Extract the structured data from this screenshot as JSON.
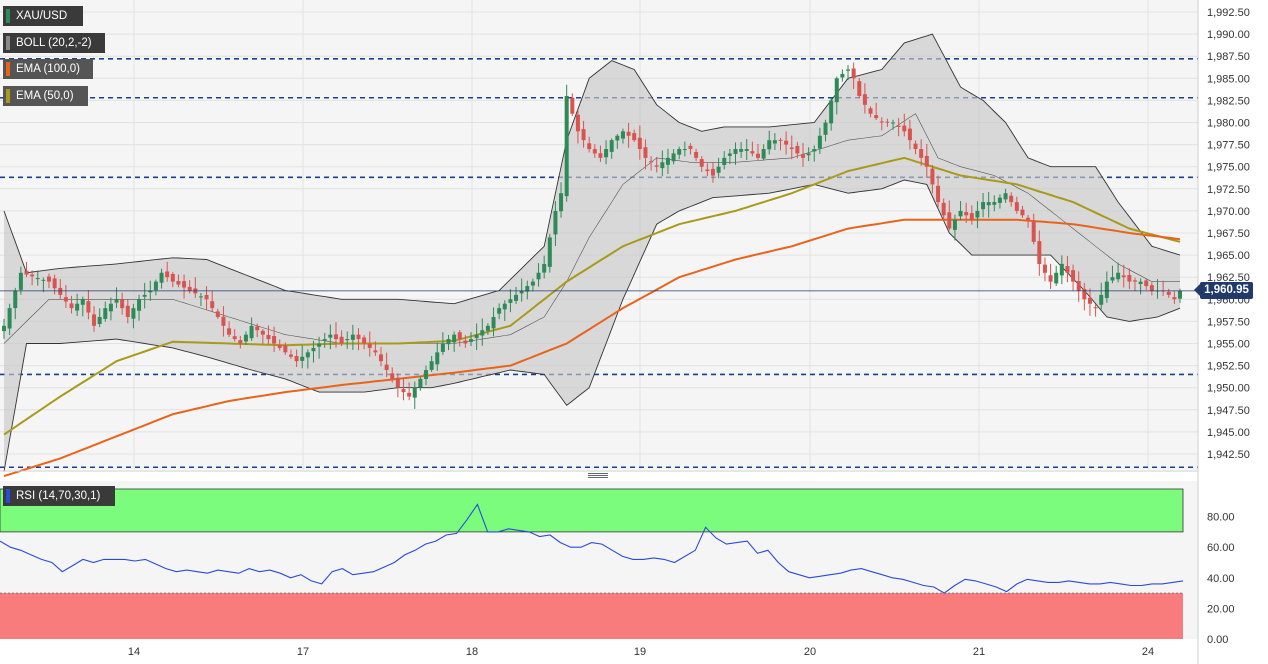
{
  "chart_data": [
    {
      "type": "candlestick",
      "symbol": "XAU/USD",
      "indicators": [
        {
          "label": "BOLL (20,2,-2)",
          "color": "#555555"
        },
        {
          "label": "EMA (100,0)",
          "color": "#e8641b"
        },
        {
          "label": "EMA (50,0)",
          "color": "#a89a1a"
        }
      ],
      "last_price": "1,960.95",
      "last_price_value": 1960.95,
      "x_tick_labels": [
        "14",
        "17",
        "18",
        "19",
        "20",
        "21",
        "24"
      ],
      "y_tick_labels": [
        "1,942.50",
        "1,945.00",
        "1,947.50",
        "1,950.00",
        "1,952.50",
        "1,955.00",
        "1,957.50",
        "1,960.00",
        "1,962.50",
        "1,965.00",
        "1,967.50",
        "1,970.00",
        "1,972.50",
        "1,975.00",
        "1,977.50",
        "1,980.00",
        "1,982.50",
        "1,985.00",
        "1,987.50",
        "1,990.00",
        "1,992.50"
      ],
      "ylim": [
        1941.0,
        1993.5
      ],
      "horizontal_levels": [
        1941.0,
        1951.5,
        1973.8,
        1982.8,
        1987.2
      ],
      "close_path": [
        [
          0,
          1957
        ],
        [
          3,
          1963
        ],
        [
          8,
          1962
        ],
        [
          12,
          1959
        ],
        [
          14,
          1960
        ],
        [
          16,
          1957
        ],
        [
          18,
          1959
        ],
        [
          20,
          1960
        ],
        [
          22,
          1958
        ],
        [
          24,
          1960
        ],
        [
          26,
          1961
        ],
        [
          28,
          1963
        ],
        [
          30,
          1962
        ],
        [
          33,
          1961
        ],
        [
          36,
          1960
        ],
        [
          38,
          1958
        ],
        [
          40,
          1956
        ],
        [
          42,
          1955
        ],
        [
          44,
          1957
        ],
        [
          46,
          1956
        ],
        [
          48,
          1955
        ],
        [
          50,
          1954
        ],
        [
          52,
          1953
        ],
        [
          54,
          1954
        ],
        [
          56,
          1955
        ],
        [
          58,
          1956
        ],
        [
          60,
          1955
        ],
        [
          62,
          1956
        ],
        [
          64,
          1955
        ],
        [
          66,
          1954
        ],
        [
          68,
          1952
        ],
        [
          70,
          1950
        ],
        [
          72,
          1949
        ],
        [
          74,
          1951
        ],
        [
          76,
          1953
        ],
        [
          78,
          1955
        ],
        [
          80,
          1956
        ],
        [
          82,
          1955
        ],
        [
          84,
          1956
        ],
        [
          86,
          1957
        ],
        [
          88,
          1959
        ],
        [
          90,
          1960
        ],
        [
          92,
          1961
        ],
        [
          94,
          1962
        ],
        [
          96,
          1964
        ],
        [
          97,
          1967
        ],
        [
          98,
          1970
        ],
        [
          99,
          1972
        ],
        [
          100,
          1983
        ],
        [
          102,
          1979
        ],
        [
          104,
          1977
        ],
        [
          106,
          1976
        ],
        [
          108,
          1978
        ],
        [
          110,
          1979
        ],
        [
          112,
          1978
        ],
        [
          114,
          1976
        ],
        [
          116,
          1975
        ],
        [
          118,
          1976
        ],
        [
          120,
          1977
        ],
        [
          122,
          1977
        ],
        [
          124,
          1975
        ],
        [
          126,
          1974
        ],
        [
          128,
          1976
        ],
        [
          130,
          1977
        ],
        [
          132,
          1977
        ],
        [
          134,
          1976
        ],
        [
          136,
          1978
        ],
        [
          138,
          1978
        ],
        [
          140,
          1977
        ],
        [
          142,
          1976
        ],
        [
          144,
          1977
        ],
        [
          146,
          1980
        ],
        [
          148,
          1985
        ],
        [
          150,
          1986
        ],
        [
          151,
          1985
        ],
        [
          152,
          1983
        ],
        [
          154,
          1981
        ],
        [
          156,
          1980
        ],
        [
          158,
          1980
        ],
        [
          160,
          1979
        ],
        [
          162,
          1977
        ],
        [
          164,
          1975
        ],
        [
          166,
          1971
        ],
        [
          168,
          1968
        ],
        [
          170,
          1970
        ],
        [
          172,
          1969
        ],
        [
          174,
          1971
        ],
        [
          176,
          1971
        ],
        [
          178,
          1972
        ],
        [
          180,
          1970
        ],
        [
          182,
          1969
        ],
        [
          184,
          1964
        ],
        [
          186,
          1962
        ],
        [
          188,
          1964
        ],
        [
          190,
          1962
        ],
        [
          192,
          1960
        ],
        [
          194,
          1959
        ],
        [
          196,
          1962
        ],
        [
          198,
          1963
        ],
        [
          200,
          1962
        ],
        [
          202,
          1962
        ],
        [
          204,
          1961
        ],
        [
          206,
          1961
        ],
        [
          208,
          1960
        ],
        [
          209,
          1961
        ]
      ],
      "ema50_path": [
        [
          0,
          1944.7
        ],
        [
          10,
          1949
        ],
        [
          20,
          1953
        ],
        [
          30,
          1955.2
        ],
        [
          40,
          1955
        ],
        [
          50,
          1954.8
        ],
        [
          60,
          1955
        ],
        [
          70,
          1955
        ],
        [
          80,
          1955.3
        ],
        [
          90,
          1957
        ],
        [
          100,
          1962
        ],
        [
          110,
          1966
        ],
        [
          120,
          1968.5
        ],
        [
          130,
          1970
        ],
        [
          140,
          1972
        ],
        [
          150,
          1974.5
        ],
        [
          160,
          1976
        ],
        [
          170,
          1974
        ],
        [
          180,
          1973
        ],
        [
          190,
          1971
        ],
        [
          200,
          1968
        ],
        [
          209,
          1966.5
        ]
      ],
      "ema100_path": [
        [
          0,
          1940
        ],
        [
          10,
          1942
        ],
        [
          20,
          1944.5
        ],
        [
          30,
          1947
        ],
        [
          40,
          1948.5
        ],
        [
          50,
          1949.5
        ],
        [
          60,
          1950.3
        ],
        [
          70,
          1951
        ],
        [
          80,
          1951.7
        ],
        [
          90,
          1952.5
        ],
        [
          100,
          1955
        ],
        [
          110,
          1959
        ],
        [
          120,
          1962.5
        ],
        [
          130,
          1964.5
        ],
        [
          140,
          1966
        ],
        [
          150,
          1968
        ],
        [
          160,
          1969
        ],
        [
          170,
          1969
        ],
        [
          180,
          1969
        ],
        [
          190,
          1968.5
        ],
        [
          200,
          1967.5
        ],
        [
          209,
          1966.8
        ]
      ],
      "boll_upper_path": [
        [
          0,
          1970
        ],
        [
          4,
          1963
        ],
        [
          10,
          1963.5
        ],
        [
          20,
          1964
        ],
        [
          30,
          1964.7
        ],
        [
          36,
          1964.5
        ],
        [
          44,
          1962.5
        ],
        [
          50,
          1961
        ],
        [
          60,
          1960
        ],
        [
          70,
          1960
        ],
        [
          80,
          1959.5
        ],
        [
          88,
          1961
        ],
        [
          96,
          1966
        ],
        [
          100,
          1978
        ],
        [
          104,
          1985
        ],
        [
          108,
          1987
        ],
        [
          112,
          1986
        ],
        [
          116,
          1982
        ],
        [
          120,
          1980
        ],
        [
          124,
          1979
        ],
        [
          128,
          1979.5
        ],
        [
          136,
          1979.5
        ],
        [
          144,
          1980
        ],
        [
          150,
          1985
        ],
        [
          156,
          1986
        ],
        [
          160,
          1989
        ],
        [
          165,
          1990
        ],
        [
          170,
          1984
        ],
        [
          174,
          1982.5
        ],
        [
          178,
          1980
        ],
        [
          182,
          1976
        ],
        [
          186,
          1975
        ],
        [
          190,
          1975
        ],
        [
          194,
          1975
        ],
        [
          198,
          1971
        ],
        [
          204,
          1966
        ],
        [
          209,
          1965
        ]
      ],
      "boll_lower_path": [
        [
          0,
          1940.5
        ],
        [
          4,
          1955
        ],
        [
          10,
          1955
        ],
        [
          20,
          1955.5
        ],
        [
          30,
          1954.5
        ],
        [
          36,
          1953.5
        ],
        [
          44,
          1952
        ],
        [
          50,
          1951
        ],
        [
          56,
          1949.5
        ],
        [
          64,
          1949.5
        ],
        [
          70,
          1950
        ],
        [
          76,
          1950
        ],
        [
          80,
          1950.5
        ],
        [
          90,
          1952
        ],
        [
          96,
          1951.5
        ],
        [
          100,
          1948
        ],
        [
          104,
          1950
        ],
        [
          110,
          1960
        ],
        [
          116,
          1968.5
        ],
        [
          120,
          1970
        ],
        [
          126,
          1971.5
        ],
        [
          136,
          1972
        ],
        [
          144,
          1973
        ],
        [
          150,
          1972
        ],
        [
          156,
          1972.5
        ],
        [
          160,
          1973.5
        ],
        [
          164,
          1973
        ],
        [
          168,
          1967.5
        ],
        [
          172,
          1965
        ],
        [
          178,
          1965
        ],
        [
          186,
          1965
        ],
        [
          192,
          1961
        ],
        [
          196,
          1958
        ],
        [
          200,
          1957.5
        ],
        [
          205,
          1958
        ],
        [
          209,
          1959
        ]
      ],
      "boll_mid_path": [
        [
          0,
          1955
        ],
        [
          8,
          1960
        ],
        [
          20,
          1960
        ],
        [
          30,
          1960
        ],
        [
          40,
          1958
        ],
        [
          50,
          1956
        ],
        [
          60,
          1955
        ],
        [
          70,
          1955
        ],
        [
          80,
          1955
        ],
        [
          90,
          1956
        ],
        [
          96,
          1958
        ],
        [
          100,
          1962
        ],
        [
          104,
          1967
        ],
        [
          110,
          1973
        ],
        [
          116,
          1976
        ],
        [
          122,
          1975.5
        ],
        [
          130,
          1975.5
        ],
        [
          140,
          1976
        ],
        [
          150,
          1978
        ],
        [
          156,
          1978.5
        ],
        [
          162,
          1981
        ],
        [
          166,
          1976
        ],
        [
          170,
          1975
        ],
        [
          176,
          1974
        ],
        [
          182,
          1972
        ],
        [
          186,
          1970
        ],
        [
          192,
          1967
        ],
        [
          198,
          1964
        ],
        [
          204,
          1962
        ],
        [
          209,
          1962
        ]
      ]
    },
    {
      "type": "line",
      "label": "RSI (14,70,30,1)",
      "y_tick_labels": [
        "0.00",
        "20.00",
        "40.00",
        "60.00",
        "80.00"
      ],
      "ylim": [
        0,
        100
      ],
      "overbought": 70,
      "oversold": 30,
      "color": "#2a4bd7",
      "values": [
        64,
        60,
        58,
        55,
        52,
        50,
        44,
        48,
        52,
        50,
        52,
        52,
        52,
        51,
        52,
        49,
        46,
        44,
        45,
        44,
        43,
        45,
        44,
        43,
        46,
        44,
        45,
        43,
        40,
        42,
        38,
        36,
        44,
        46,
        42,
        43,
        44,
        47,
        50,
        55,
        58,
        62,
        64,
        68,
        69,
        78,
        88,
        70,
        70,
        72,
        71,
        70,
        67,
        68,
        63,
        60,
        60,
        63,
        62,
        58,
        54,
        52,
        52,
        53,
        52,
        50,
        54,
        58,
        73,
        66,
        62,
        63,
        64,
        56,
        58,
        50,
        44,
        42,
        40,
        41,
        42,
        43,
        45,
        46,
        44,
        42,
        40,
        39,
        37,
        35,
        34,
        30,
        35,
        39,
        38,
        36,
        34,
        31,
        36,
        39,
        38,
        37,
        37,
        38,
        37,
        36,
        36,
        37,
        36,
        35,
        35,
        36,
        36,
        37,
        38
      ]
    }
  ]
}
